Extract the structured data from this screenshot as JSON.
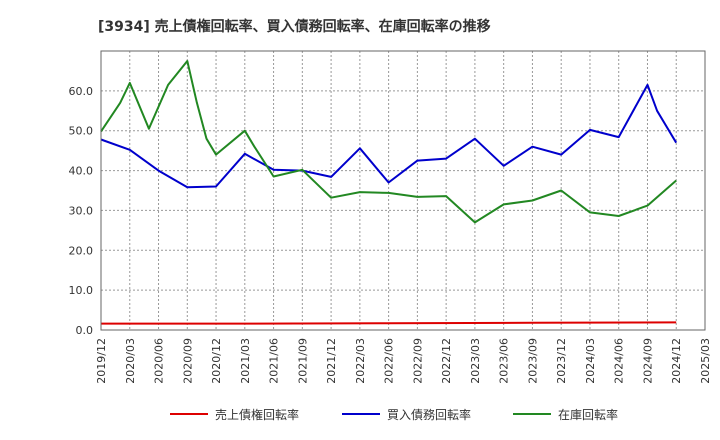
{
  "chart_data": {
    "type": "line",
    "title": "[3934]  売上債権回転率、買入債務回転率、在庫回転率の推移",
    "xlabel": "",
    "ylabel": "",
    "ylim": [
      0,
      70
    ],
    "yticks": [
      0,
      10,
      20,
      30,
      40,
      50,
      60
    ],
    "ytick_labels": [
      "0.0",
      "10.0",
      "20.0",
      "30.0",
      "40.0",
      "50.0",
      "60.0"
    ],
    "grid": true,
    "legend_position": "bottom",
    "x_tick_labels": [
      "2019/12",
      "2020/03",
      "2020/06",
      "2020/09",
      "2020/12",
      "2021/03",
      "2021/06",
      "2021/09",
      "2021/12",
      "2022/03",
      "2022/06",
      "2022/09",
      "2022/12",
      "2023/03",
      "2023/06",
      "2023/09",
      "2023/12",
      "2024/03",
      "2024/06",
      "2024/09",
      "2024/12",
      "2025/03"
    ],
    "x_months": [
      0,
      1,
      2,
      3,
      4,
      5,
      6,
      7,
      8,
      9,
      10,
      11,
      12,
      13,
      14,
      15,
      16,
      17,
      18,
      19,
      20,
      21,
      22,
      23,
      24,
      25,
      26,
      27,
      28,
      29,
      30,
      31,
      32,
      33,
      34,
      35,
      36,
      37,
      38,
      39,
      40,
      41,
      42,
      43,
      44,
      45,
      46,
      47,
      48,
      49,
      50,
      51,
      52,
      53,
      54,
      55,
      56,
      57,
      58,
      59,
      60,
      61,
      62,
      63
    ],
    "series": [
      {
        "name": "売上債権回転率",
        "color": "#dd0000",
        "x": [
          0,
          15,
          30,
          45,
          60
        ],
        "values": [
          1.6,
          1.6,
          1.7,
          1.8,
          1.9
        ]
      },
      {
        "name": "買入債務回転率",
        "color": "#0000cc",
        "x": [
          0,
          3,
          6,
          9,
          12,
          15,
          18,
          21,
          24,
          27,
          30,
          33,
          36,
          39,
          42,
          45,
          48,
          51,
          54,
          57,
          58,
          60
        ],
        "values": [
          47.8,
          45.2,
          40.0,
          35.8,
          36.0,
          44.2,
          40.2,
          40.0,
          38.4,
          45.6,
          37.0,
          42.5,
          43.0,
          48.0,
          41.2,
          46.0,
          44.0,
          50.2,
          48.4,
          61.5,
          55.0,
          47.0
        ]
      },
      {
        "name": "在庫回転率",
        "color": "#228822",
        "x": [
          0,
          2,
          3,
          5,
          7,
          9,
          10,
          11,
          12,
          15,
          16,
          18,
          21,
          24,
          27,
          30,
          33,
          36,
          39,
          42,
          45,
          48,
          51,
          54,
          57,
          60
        ],
        "values": [
          49.8,
          57.0,
          62.0,
          50.5,
          61.5,
          67.5,
          57.0,
          48.0,
          44.0,
          50.0,
          46.0,
          38.5,
          40.2,
          33.2,
          34.6,
          34.4,
          33.4,
          33.6,
          27.0,
          31.5,
          32.5,
          35.0,
          29.5,
          28.6,
          31.2,
          37.5
        ]
      }
    ]
  }
}
